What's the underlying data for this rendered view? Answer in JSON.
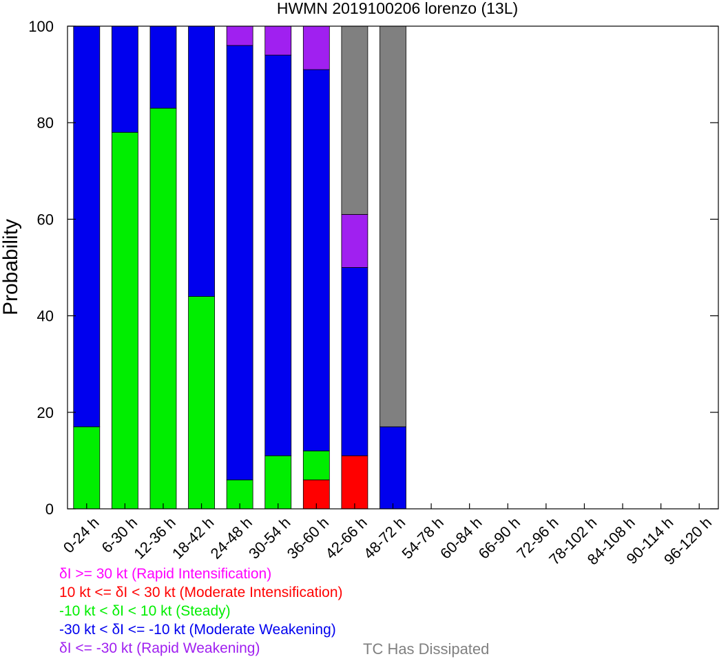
{
  "chart_data": {
    "type": "bar",
    "stacked": true,
    "title": "HWMN 2019100206 lorenzo (13L)",
    "ylabel": "Probability",
    "ylim": [
      0,
      100
    ],
    "yticks": [
      0,
      20,
      40,
      60,
      80,
      100
    ],
    "grid": false,
    "legend_placement": "bottom",
    "categories": [
      "0-24 h",
      "6-30 h",
      "12-36 h",
      "18-42 h",
      "24-48 h",
      "30-54 h",
      "36-60 h",
      "42-66 h",
      "48-72 h",
      "54-78 h",
      "60-84 h",
      "66-90 h",
      "72-96 h",
      "78-102 h",
      "84-108 h",
      "90-114 h",
      "96-120 h"
    ],
    "series": [
      {
        "key": "mi",
        "color": "#ff0000",
        "values": [
          0,
          0,
          0,
          0,
          0,
          0,
          6,
          11,
          0,
          0,
          0,
          0,
          0,
          0,
          0,
          0,
          0
        ]
      },
      {
        "key": "st",
        "color": "#00ee00",
        "values": [
          17,
          78,
          83,
          44,
          6,
          11,
          6,
          0,
          0,
          0,
          0,
          0,
          0,
          0,
          0,
          0,
          0
        ]
      },
      {
        "key": "mw",
        "color": "#0000ee",
        "values": [
          83,
          22,
          17,
          56,
          90,
          83,
          79,
          39,
          17,
          0,
          0,
          0,
          0,
          0,
          0,
          0,
          0
        ]
      },
      {
        "key": "rw",
        "color": "#a020f0",
        "values": [
          0,
          0,
          0,
          0,
          4,
          6,
          9,
          11,
          0,
          0,
          0,
          0,
          0,
          0,
          0,
          0,
          0
        ]
      },
      {
        "key": "ri",
        "color": "#ff00ff",
        "values": [
          0,
          0,
          0,
          0,
          0,
          0,
          0,
          0,
          0,
          0,
          0,
          0,
          0,
          0,
          0,
          0,
          0
        ]
      },
      {
        "key": "diss",
        "color": "#808080",
        "values": [
          0,
          0,
          0,
          0,
          0,
          0,
          0,
          39,
          83,
          0,
          0,
          0,
          0,
          0,
          0,
          0,
          0
        ]
      }
    ]
  },
  "legend": {
    "items": [
      {
        "text": "δI >= 30 kt (Rapid Intensification)",
        "color": "#ff00ff"
      },
      {
        "text": "10 kt <= δI < 30 kt (Moderate Intensification)",
        "color": "#ff0000"
      },
      {
        "text": "-10 kt < δI < 10 kt (Steady)",
        "color": "#00ee00"
      },
      {
        "text": "-30 kt < δI <= -10 kt (Moderate Weakening)",
        "color": "#0000ee"
      },
      {
        "text": "δI <= -30 kt (Rapid Weakening)",
        "color": "#a020f0"
      }
    ],
    "dissipated": {
      "text": "TC Has Dissipated",
      "color": "#808080"
    }
  }
}
